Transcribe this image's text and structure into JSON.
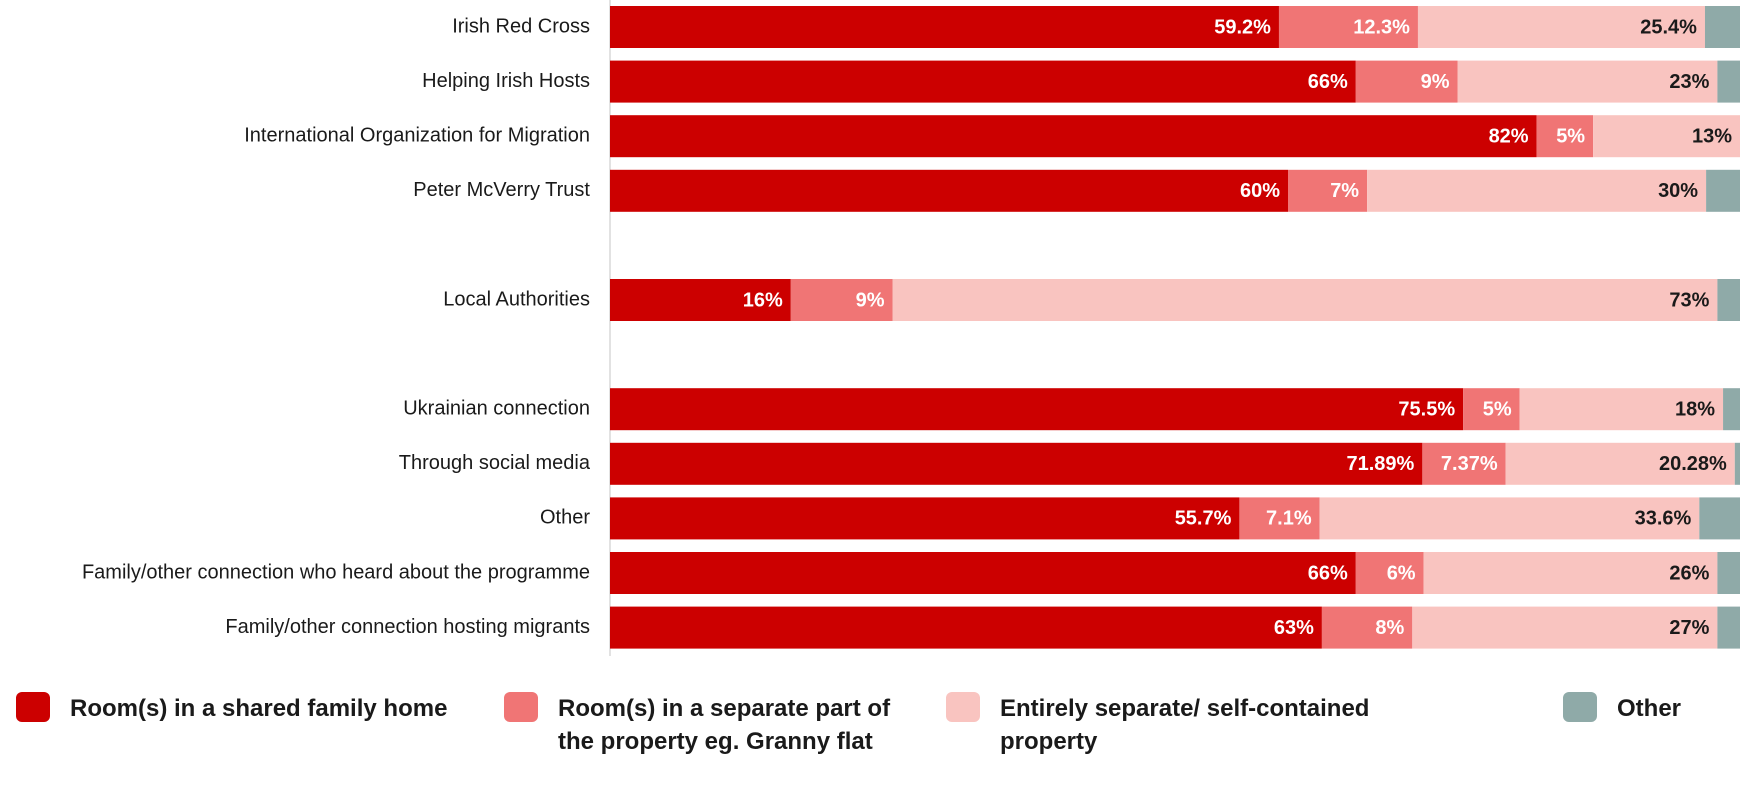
{
  "chart_data": {
    "type": "bar",
    "orientation": "horizontal",
    "stacked": true,
    "xlim": [
      0,
      100
    ],
    "grid": false,
    "legend_position": "bottom",
    "categories": [
      "Irish Red Cross",
      "Helping Irish Hosts",
      "International Organization for Migration",
      "Peter McVerry Trust",
      "",
      "Local Authorities",
      "",
      "Ukrainian connection",
      "Through social media",
      "Other",
      "Family/other connection who heard about the programme",
      "Family/other connection hosting migrants"
    ],
    "series": [
      {
        "name": "Room(s) in a shared family home",
        "color": "#cc0000",
        "label_color": "#ffffff",
        "values": [
          59.2,
          66,
          82,
          60,
          null,
          16,
          null,
          75.5,
          71.89,
          55.7,
          66,
          63
        ],
        "labels": [
          "59.2%",
          "66%",
          "82%",
          "60%",
          "",
          "16%",
          "",
          "75.5%",
          "71.89%",
          "55.7%",
          "66%",
          "63%"
        ]
      },
      {
        "name": "Room(s) in a separate part of the property eg. Granny flat",
        "color": "#f07575",
        "label_color": "#ffffff",
        "values": [
          12.3,
          9,
          5,
          7,
          null,
          9,
          null,
          5,
          7.37,
          7.1,
          6,
          8
        ],
        "labels": [
          "12.3%",
          "9%",
          "5%",
          "7%",
          "",
          "9%",
          "",
          "5%",
          "7.37%",
          "7.1%",
          "6%",
          "8%"
        ]
      },
      {
        "name": "Entirely separate/ self-contained property",
        "color": "#f9c4c0",
        "label_color": "#1a1a1a",
        "values": [
          25.4,
          23,
          13,
          30,
          null,
          73,
          null,
          18,
          20.28,
          33.6,
          26,
          27
        ],
        "labels": [
          "25.4%",
          "23%",
          "13%",
          "30%",
          "",
          "73%",
          "",
          "18%",
          "20.28%",
          "33.6%",
          "26%",
          "27%"
        ]
      },
      {
        "name": "Other",
        "color": "#8faaa8",
        "label_color": "#1a1a1a",
        "values": [
          3.1,
          2,
          0,
          3,
          null,
          2,
          null,
          1.5,
          0.46,
          3.6,
          2,
          2
        ],
        "labels": [
          "",
          "",
          "",
          "",
          "",
          "",
          "",
          "",
          "",
          "",
          "",
          ""
        ]
      }
    ]
  },
  "legend": {
    "items": [
      {
        "label": "Room(s) in a shared family home",
        "color": "#cc0000"
      },
      {
        "label": "Room(s) in a separate part of the property eg. Granny flat",
        "color": "#f07575"
      },
      {
        "label": "Entirely separate/ self-contained property",
        "color": "#f9c4c0"
      },
      {
        "label": "Other",
        "color": "#8faaa8"
      }
    ]
  }
}
